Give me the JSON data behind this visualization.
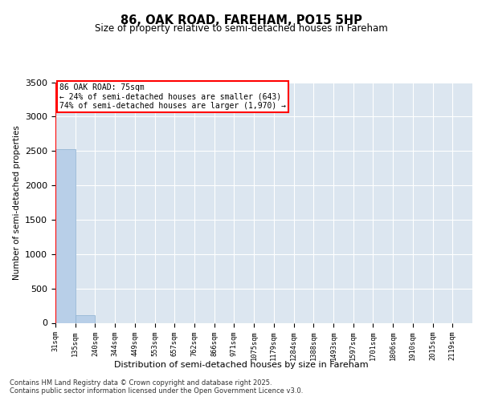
{
  "title": "86, OAK ROAD, FAREHAM, PO15 5HP",
  "subtitle": "Size of property relative to semi-detached houses in Fareham",
  "xlabel": "Distribution of semi-detached houses by size in Fareham",
  "ylabel": "Number of semi-detached properties",
  "footnote1": "Contains HM Land Registry data © Crown copyright and database right 2025.",
  "footnote2": "Contains public sector information licensed under the Open Government Licence v3.0.",
  "annotation_title": "86 OAK ROAD: 75sqm",
  "annotation_line1": "← 24% of semi-detached houses are smaller (643)",
  "annotation_line2": "74% of semi-detached houses are larger (1,970) →",
  "bar_color": "#b8cfe8",
  "bar_edge_color": "#8aafd0",
  "redline_color": "red",
  "background_color": "#dce6f0",
  "ylim": [
    0,
    3500
  ],
  "n_bins": 21,
  "bin_counts": [
    2530,
    110,
    0,
    0,
    0,
    0,
    0,
    0,
    0,
    0,
    0,
    0,
    0,
    0,
    0,
    0,
    0,
    0,
    0,
    0,
    0
  ],
  "redline_bin": 0,
  "xtick_labels": [
    "31sqm",
    "135sqm",
    "240sqm",
    "344sqm",
    "449sqm",
    "553sqm",
    "657sqm",
    "762sqm",
    "866sqm",
    "971sqm",
    "1075sqm",
    "1179sqm",
    "1284sqm",
    "1388sqm",
    "1493sqm",
    "1597sqm",
    "1701sqm",
    "1806sqm",
    "1910sqm",
    "2015sqm",
    "2119sqm"
  ],
  "ytick_values": [
    0,
    500,
    1000,
    1500,
    2000,
    2500,
    3000,
    3500
  ],
  "grid_color": "white",
  "fig_bg": "white"
}
